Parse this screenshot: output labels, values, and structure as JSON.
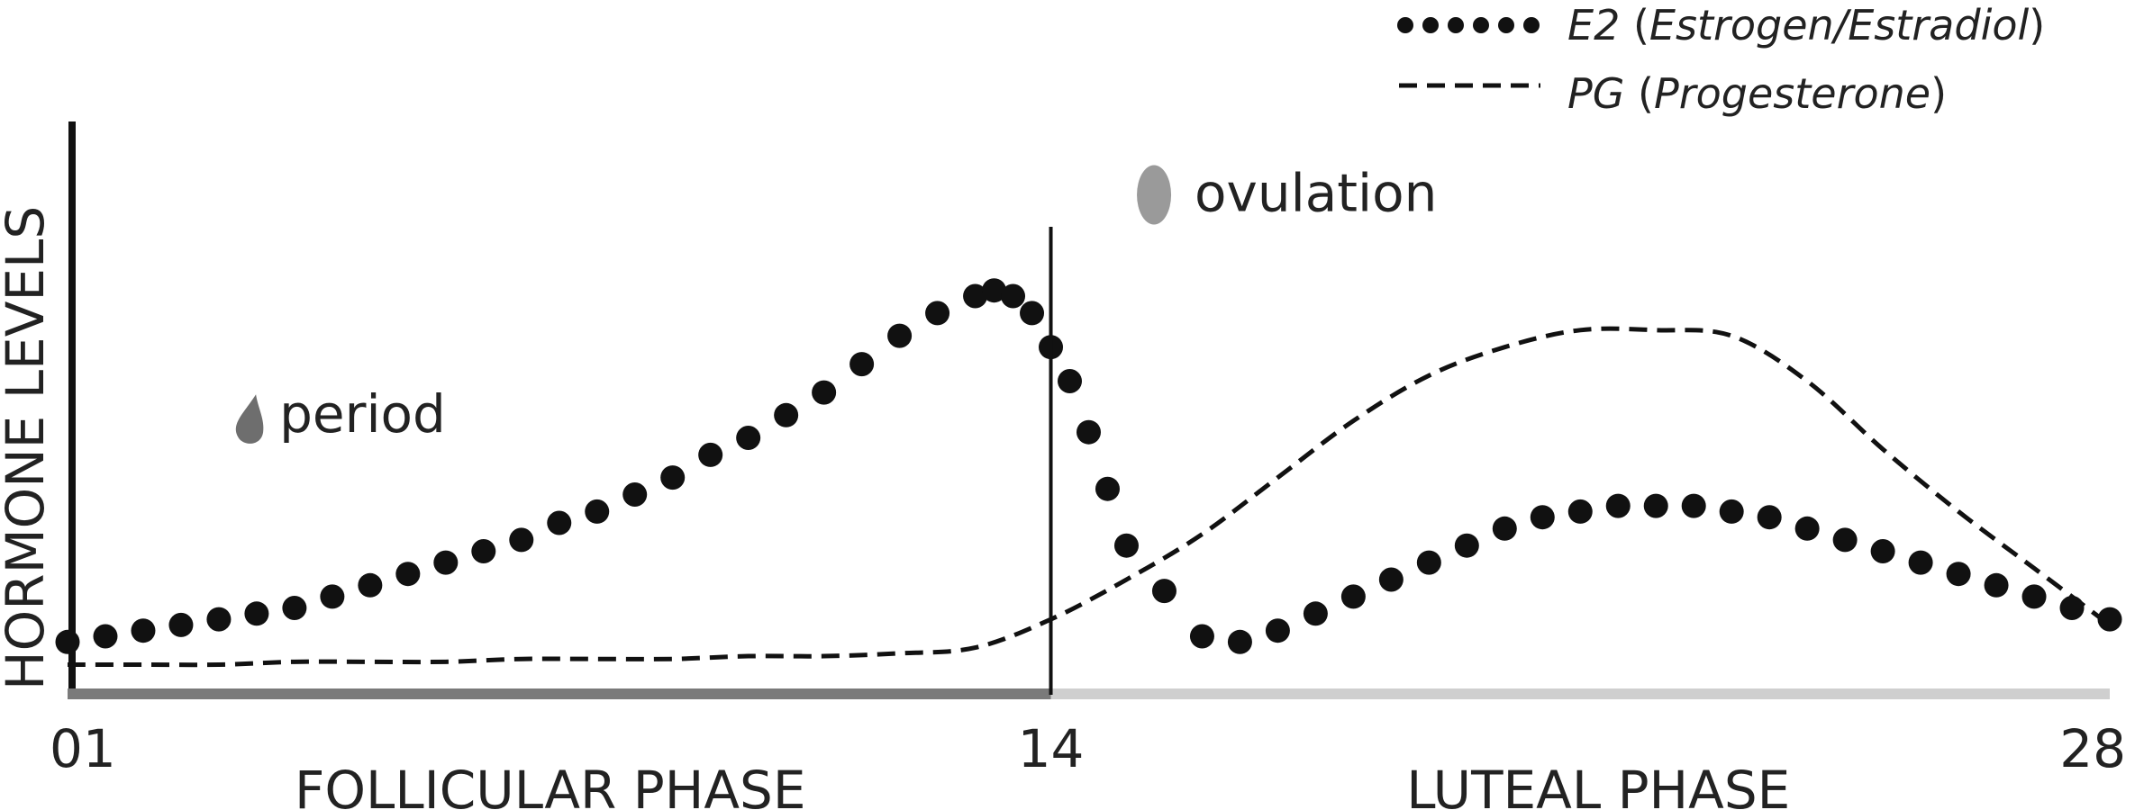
{
  "chart_data": {
    "type": "line",
    "ylabel": "HORMONE LEVELS",
    "x_ticks": [
      "01",
      "14",
      "28"
    ],
    "x_tick_values": [
      1,
      14,
      28
    ],
    "xlim": [
      1,
      28
    ],
    "ylim": [
      0,
      100
    ],
    "phases": [
      {
        "label": "FOLLICULAR PHASE",
        "from": 1,
        "to": 14,
        "color": "#7a7a7a"
      },
      {
        "label": "LUTEAL PHASE",
        "from": 14,
        "to": 28,
        "color": "#cfcfcf"
      }
    ],
    "divider_x": 14,
    "annotations": [
      {
        "text": "period",
        "x": 3.8,
        "y": 46,
        "icon": "droplet-icon",
        "icon_color": "#6e6e6e"
      },
      {
        "text": "ovulation",
        "x": 15.9,
        "y": 85,
        "icon": "egg-icon",
        "icon_color": "#9a9a9a"
      }
    ],
    "legend": {
      "position": "top-right"
    },
    "series": [
      {
        "name": "E2 (Estrogen/Estradiol)",
        "legend_prefix": "E2",
        "legend_suffix": " (Estrogen/Estradiol)",
        "style": "dotted",
        "color": "#111111",
        "x": [
          1.0,
          1.5,
          2.0,
          2.5,
          3.0,
          3.5,
          4.0,
          4.5,
          5.0,
          5.5,
          6.0,
          6.5,
          7.0,
          7.5,
          8.0,
          8.5,
          9.0,
          9.5,
          10.0,
          10.5,
          11.0,
          11.5,
          12.0,
          12.5,
          13.0,
          13.25,
          13.5,
          13.75,
          14.0,
          14.25,
          14.5,
          14.75,
          15.0,
          15.5,
          16.0,
          16.5,
          17.0,
          17.5,
          18.0,
          18.5,
          19.0,
          19.5,
          20.0,
          20.5,
          21.0,
          21.5,
          22.0,
          22.5,
          23.0,
          23.5,
          24.0,
          24.5,
          25.0,
          25.5,
          26.0,
          26.5,
          27.0,
          27.5,
          28.0
        ],
        "y": [
          9,
          10,
          11,
          12,
          13,
          14,
          15,
          17,
          19,
          21,
          23,
          25,
          27,
          30,
          32,
          35,
          38,
          42,
          45,
          49,
          53,
          58,
          63,
          67,
          70,
          71,
          70,
          67,
          61,
          55,
          46,
          36,
          26,
          18,
          10,
          9,
          11,
          14,
          17,
          20,
          23,
          26,
          29,
          31,
          32,
          33,
          33,
          33,
          32,
          31,
          29,
          27,
          25,
          23,
          21,
          19,
          17,
          15,
          13
        ]
      },
      {
        "name": "PG (Progesterone)",
        "legend_prefix": "PG",
        "legend_suffix": " (Progesterone)",
        "style": "dashed",
        "color": "#111111",
        "x": [
          1,
          2,
          3,
          4,
          5,
          6,
          7,
          8,
          9,
          10,
          11,
          12,
          13,
          14,
          15,
          16,
          17,
          18,
          19,
          20,
          21,
          22,
          23,
          24,
          25,
          26,
          27,
          28
        ],
        "y": [
          5,
          5,
          5,
          5.5,
          5.5,
          5.5,
          6,
          6,
          6,
          6.5,
          6.5,
          7,
          8,
          13,
          20,
          28,
          38,
          48,
          56,
          61,
          64,
          64,
          63,
          55,
          43,
          32,
          22,
          12
        ]
      }
    ]
  }
}
